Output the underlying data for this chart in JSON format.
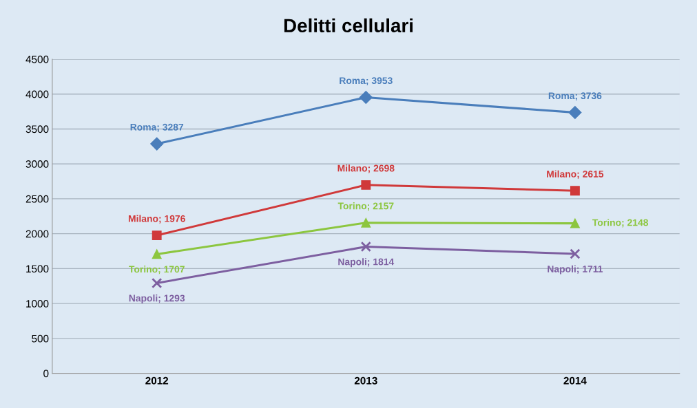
{
  "chart_data": {
    "type": "line",
    "title": "Delitti cellulari",
    "categories": [
      "2012",
      "2013",
      "2014"
    ],
    "series": [
      {
        "color": "#4a7ebb",
        "marker": "diamond",
        "values": [
          3287,
          3953,
          3736
        ],
        "value_labels": [
          "Roma; 3287",
          "Roma; 3953",
          "Roma; 3736"
        ]
      },
      {
        "color": "#d0393a",
        "marker": "square",
        "values": [
          1976,
          2698,
          2615
        ],
        "value_labels": [
          "Milano; 1976",
          "Milano; 2698",
          "Milano; 2615"
        ]
      },
      {
        "color": "#8cc63f",
        "marker": "triangle",
        "values": [
          1707,
          2157,
          2148
        ],
        "value_labels": [
          "Torino; 1707",
          "Torino; 2157",
          "Torino; 2148"
        ]
      },
      {
        "color": "#7d5fa0",
        "marker": "cross",
        "values": [
          1293,
          1814,
          1711
        ],
        "value_labels": [
          "Napoli; 1293",
          "Napoli; 1814",
          "Napoli; 1711"
        ]
      }
    ],
    "ylim": [
      0,
      4500
    ],
    "yticks": [
      0,
      500,
      1000,
      1500,
      2000,
      2500,
      3000,
      3500,
      4000,
      4500
    ],
    "grid": "y",
    "legend": false
  }
}
